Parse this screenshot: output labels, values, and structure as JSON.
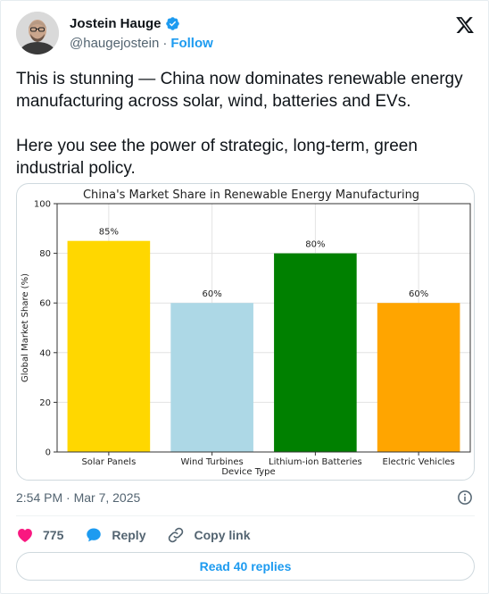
{
  "author": {
    "name": "Jostein Hauge",
    "handle": "@haugejostein",
    "separator": "·",
    "follow_label": "Follow",
    "verified": true
  },
  "icons": {
    "avatar": "avatar",
    "verified": "verified-badge-icon",
    "logo": "x-logo-icon",
    "info": "info-icon",
    "like": "heart-icon",
    "reply": "reply-bubble-icon",
    "copy": "link-icon"
  },
  "tweet": {
    "paragraph1": "This is stunning — China now dominates renewable energy manufacturing across solar, wind, batteries and EVs.",
    "paragraph2": "Here you see the power of strategic, long-term, green industrial policy."
  },
  "chart_data": {
    "type": "bar",
    "title": "China's Market Share in Renewable Energy Manufacturing",
    "xlabel": "Device Type",
    "ylabel": "Global Market Share (%)",
    "categories": [
      "Solar Panels",
      "Wind Turbines",
      "Lithium-ion Batteries",
      "Electric Vehicles"
    ],
    "values": [
      85,
      60,
      80,
      60
    ],
    "value_labels": [
      "85%",
      "60%",
      "80%",
      "60%"
    ],
    "colors": [
      "#FFD700",
      "#ADD8E6",
      "#008000",
      "#FFA500"
    ],
    "ylim": [
      0,
      100
    ],
    "yticks": [
      "0",
      "20",
      "40",
      "60",
      "80",
      "100"
    ],
    "grid": true
  },
  "meta": {
    "timestamp": "2:54 PM · Mar 7, 2025"
  },
  "actions": {
    "like_count": "775",
    "reply_label": "Reply",
    "copy_label": "Copy link",
    "read_replies_label": "Read 40 replies"
  },
  "colors": {
    "accent": "#1d9bf0",
    "like": "#f91880",
    "muted": "#536471"
  }
}
